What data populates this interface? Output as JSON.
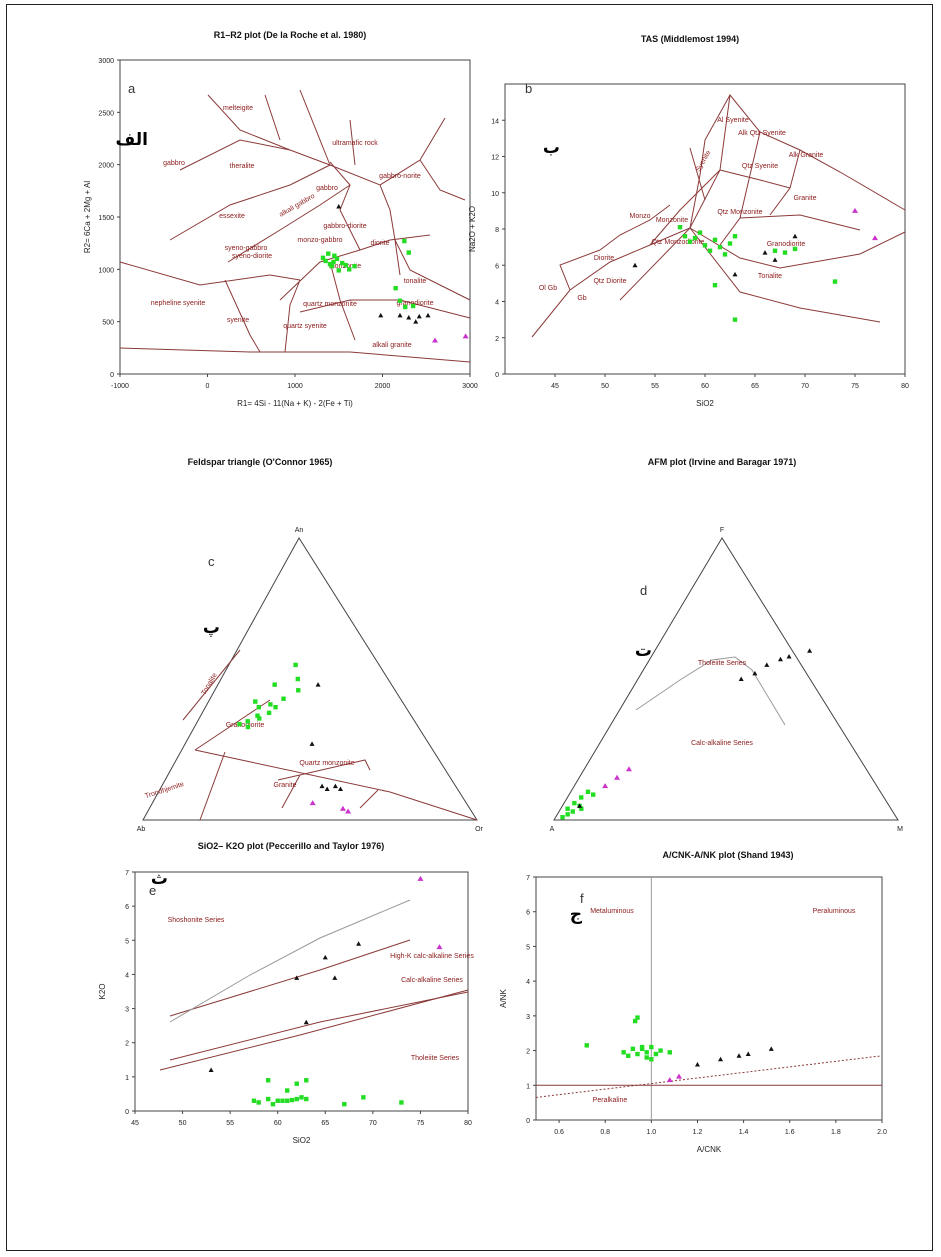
{
  "colors": {
    "field": "#8b1a1a",
    "boundary": "#8b3a3a",
    "green": "#22dd22",
    "black": "#111111",
    "magenta": "#cc33cc",
    "axis": "#444444"
  },
  "persian_labels": [
    "الف",
    "ب",
    "پ",
    "ت",
    "ث",
    "ج"
  ],
  "chart_data": [
    {
      "id": "a",
      "type": "scatter",
      "letter": "a",
      "title": "R1–R2 plot (De la Roche et al. 1980)",
      "xlabel": "R1= 4Si - 11(Na + K) - 2(Fe + Ti)",
      "ylabel": "R2= 6Ca + 2Mg + Al",
      "xlim": [
        -1000,
        3000
      ],
      "ylim": [
        0,
        3000
      ],
      "xticks": [
        "-1000",
        "0",
        "1000",
        "2000",
        "3000"
      ],
      "yticks": [
        "0",
        "500",
        "1000",
        "1500",
        "2000",
        "2500",
        "3000"
      ],
      "field_labels": [
        "melteigite",
        "ultramafic rock",
        "gabbro",
        "theralite",
        "gabbro-norite",
        "gabbro",
        "essexite",
        "alkali gabbro",
        "syeno-gabbro",
        "gabbro-diorite",
        "syeno-diorite",
        "monzo-gabbro",
        "diorite",
        "monzonite",
        "tonalite",
        "nepheline syenite",
        "syenite",
        "quartz monzonite",
        "granodiorite",
        "quartz syenite",
        "alkali granite",
        "granite"
      ],
      "series": [
        {
          "name": "",
          "color": "green",
          "points": [
            [
              1320,
              1110
            ],
            [
              1350,
              1080
            ],
            [
              1380,
              1150
            ],
            [
              1400,
              1050
            ],
            [
              1420,
              1030
            ],
            [
              1440,
              1070
            ],
            [
              1480,
              1100
            ],
            [
              1500,
              990
            ],
            [
              1540,
              1060
            ],
            [
              1580,
              1040
            ],
            [
              1620,
              1000
            ],
            [
              1680,
              1030
            ],
            [
              2150,
              820
            ],
            [
              2200,
              700
            ],
            [
              2250,
              1270
            ],
            [
              2300,
              1160
            ],
            [
              2350,
              650
            ],
            [
              2260,
              640
            ],
            [
              1450,
              1130
            ]
          ]
        },
        {
          "name": "",
          "color": "black",
          "points": [
            [
              1500,
              1600
            ],
            [
              1980,
              560
            ],
            [
              2200,
              560
            ],
            [
              2300,
              540
            ],
            [
              2380,
              500
            ],
            [
              2420,
              550
            ],
            [
              2520,
              560
            ]
          ]
        },
        {
          "name": "",
          "color": "magenta",
          "points": [
            [
              2600,
              320
            ],
            [
              2950,
              360
            ]
          ]
        }
      ]
    },
    {
      "id": "b",
      "type": "scatter",
      "letter": "b",
      "title": "TAS (Middlemost 1994)",
      "xlabel": "SiO2",
      "ylabel": "Na2O + K2O",
      "xlim": [
        40,
        80
      ],
      "ylim": [
        0,
        16
      ],
      "xticks": [
        "45",
        "50",
        "55",
        "60",
        "65",
        "70",
        "75",
        "80"
      ],
      "yticks": [
        "0",
        "2",
        "4",
        "6",
        "8",
        "10",
        "12",
        "14"
      ],
      "field_labels": [
        "Al Syenite",
        "Alk Qtz Syenite",
        "Alk Granite",
        "Qtz Syenite",
        "Syenite",
        "Qtz Monzonite",
        "Monzonite",
        "Granite",
        "Granodiorite",
        "Qtz Monzodiorite",
        "Monzo",
        "Qtz Diorite",
        "Tonalite",
        "Diorite",
        "Gb",
        "Ol Gb"
      ],
      "series": [
        {
          "name": "",
          "color": "green",
          "points": [
            [
              57.5,
              8.1
            ],
            [
              58,
              7.6
            ],
            [
              58.5,
              7.3
            ],
            [
              59,
              7.5
            ],
            [
              59.5,
              7.8
            ],
            [
              60,
              7.1
            ],
            [
              60.5,
              6.8
            ],
            [
              61,
              7.4
            ],
            [
              61.5,
              7.0
            ],
            [
              62,
              6.6
            ],
            [
              62.5,
              7.2
            ],
            [
              63,
              7.6
            ],
            [
              61,
              4.9
            ],
            [
              63,
              3.0
            ],
            [
              67,
              6.8
            ],
            [
              68,
              6.7
            ],
            [
              69,
              6.9
            ],
            [
              73,
              5.1
            ]
          ]
        },
        {
          "name": "",
          "color": "black",
          "points": [
            [
              53,
              6.0
            ],
            [
              63,
              5.5
            ],
            [
              66,
              6.7
            ],
            [
              67,
              6.3
            ],
            [
              69,
              7.6
            ]
          ]
        },
        {
          "name": "",
          "color": "magenta",
          "points": [
            [
              75,
              9.0
            ],
            [
              77,
              7.5
            ]
          ]
        }
      ]
    },
    {
      "id": "c",
      "type": "scatter",
      "letter": "c",
      "title": "Feldspar triangle (O'Connor 1965)",
      "corners": [
        "An",
        "Ab",
        "Or"
      ],
      "field_labels": [
        "Tonalite",
        "Granodiorite",
        "Quartz monzonite",
        "Trondhjemite",
        "Granite"
      ],
      "series": [
        {
          "name": "",
          "color": "green",
          "points": [
            [
              0.15,
              0.35
            ],
            [
              0.14,
              0.42
            ],
            [
              0.16,
              0.4
            ],
            [
              0.2,
              0.38
            ],
            [
              0.17,
              0.37
            ],
            [
              0.19,
              0.41
            ],
            [
              0.22,
              0.43
            ],
            [
              0.13,
              0.34
            ],
            [
              0.16,
              0.33
            ],
            [
              0.18,
              0.36
            ],
            [
              0.21,
              0.4
            ],
            [
              0.25,
              0.46
            ],
            [
              0.23,
              0.5
            ],
            [
              0.2,
              0.55
            ],
            [
              0.17,
              0.48
            ]
          ]
        },
        {
          "name": "",
          "color": "black",
          "points": [
            [
              0.3,
              0.48
            ],
            [
              0.38,
              0.27
            ],
            [
              0.48,
              0.12
            ],
            [
              0.5,
              0.11
            ],
            [
              0.52,
              0.12
            ],
            [
              0.54,
              0.11
            ]
          ]
        },
        {
          "name": "",
          "color": "magenta",
          "points": [
            [
              0.58,
              0.04
            ],
            [
              0.6,
              0.03
            ],
            [
              0.48,
              0.06
            ]
          ]
        }
      ]
    },
    {
      "id": "d",
      "type": "scatter",
      "letter": "d",
      "title": "AFM plot (Irvine and Baragar 1971)",
      "corners": [
        "F",
        "A",
        "M"
      ],
      "field_labels": [
        "Tholeiite Series",
        "Calc-alkaline Series"
      ],
      "series": [
        {
          "name": "",
          "color": "green",
          "points": [
            [
              0.02,
              0.01
            ],
            [
              0.03,
              0.02
            ],
            [
              0.04,
              0.03
            ],
            [
              0.02,
              0.04
            ],
            [
              0.05,
              0.05
            ],
            [
              0.03,
              0.06
            ],
            [
              0.06,
              0.04
            ],
            [
              0.04,
              0.08
            ],
            [
              0.05,
              0.1
            ],
            [
              0.07,
              0.09
            ]
          ]
        },
        {
          "name": "",
          "color": "black",
          "points": [
            [
              0.3,
              0.5
            ],
            [
              0.33,
              0.52
            ],
            [
              0.35,
              0.55
            ],
            [
              0.38,
              0.57
            ],
            [
              0.4,
              0.58
            ],
            [
              0.45,
              0.6
            ],
            [
              0.05,
              0.05
            ]
          ]
        },
        {
          "name": "",
          "color": "magenta",
          "points": [
            [
              0.09,
              0.12
            ],
            [
              0.11,
              0.15
            ],
            [
              0.13,
              0.18
            ]
          ]
        }
      ]
    },
    {
      "id": "e",
      "type": "scatter",
      "letter": "e",
      "title": "SiO2– K2O plot (Peccerillo and Taylor 1976)",
      "xlabel": "SiO2",
      "ylabel": "K2O",
      "xlim": [
        45,
        80
      ],
      "ylim": [
        0,
        7
      ],
      "xticks": [
        "45",
        "50",
        "55",
        "60",
        "65",
        "70",
        "75",
        "80"
      ],
      "yticks": [
        "0",
        "1",
        "2",
        "3",
        "4",
        "5",
        "6",
        "7"
      ],
      "field_labels": [
        "Shoshonite Series",
        "High-K calc-alkaline Series",
        "Calc-alkaline Series",
        "Tholeiite Series"
      ],
      "series": [
        {
          "name": "",
          "color": "green",
          "points": [
            [
              57.5,
              0.3
            ],
            [
              58,
              0.25
            ],
            [
              59,
              0.35
            ],
            [
              59.5,
              0.2
            ],
            [
              60,
              0.3
            ],
            [
              60.5,
              0.3
            ],
            [
              61,
              0.3
            ],
            [
              61.5,
              0.32
            ],
            [
              62,
              0.35
            ],
            [
              62.5,
              0.4
            ],
            [
              63,
              0.35
            ],
            [
              59,
              0.9
            ],
            [
              62,
              0.8
            ],
            [
              63,
              0.9
            ],
            [
              61,
              0.6
            ],
            [
              67,
              0.2
            ],
            [
              69,
              0.4
            ],
            [
              73,
              0.25
            ]
          ]
        },
        {
          "name": "",
          "color": "black",
          "points": [
            [
              53,
              1.2
            ],
            [
              62,
              3.9
            ],
            [
              63,
              2.6
            ],
            [
              65,
              4.5
            ],
            [
              66,
              3.9
            ],
            [
              68.5,
              4.9
            ]
          ]
        },
        {
          "name": "",
          "color": "magenta",
          "points": [
            [
              75,
              6.8
            ],
            [
              77,
              4.8
            ]
          ]
        }
      ]
    },
    {
      "id": "f",
      "type": "scatter",
      "letter": "f",
      "title": "A/CNK-A/NK plot (Shand 1943)",
      "xlabel": "A/CNK",
      "ylabel": "A/NK",
      "xlim": [
        0.5,
        2.0
      ],
      "ylim": [
        0,
        7
      ],
      "xticks": [
        "0.6",
        "0.8",
        "1.0",
        "1.2",
        "1.4",
        "1.6",
        "1.8",
        "2.0"
      ],
      "yticks": [
        "0",
        "1",
        "2",
        "3",
        "4",
        "5",
        "6",
        "7"
      ],
      "field_labels": [
        "Metaluminous",
        "Peraluminous",
        "Peralkaline"
      ],
      "series": [
        {
          "name": "",
          "color": "green",
          "points": [
            [
              0.72,
              2.15
            ],
            [
              0.88,
              1.95
            ],
            [
              0.9,
              1.85
            ],
            [
              0.92,
              2.05
            ],
            [
              0.94,
              1.9
            ],
            [
              0.96,
              2.1
            ],
            [
              0.98,
              1.95
            ],
            [
              1.0,
              2.1
            ],
            [
              1.02,
              1.9
            ],
            [
              1.04,
              2.0
            ],
            [
              0.98,
              1.8
            ],
            [
              1.0,
              1.75
            ],
            [
              0.93,
              2.85
            ],
            [
              0.94,
              2.95
            ],
            [
              1.08,
              1.95
            ],
            [
              0.96,
              2.05
            ]
          ]
        },
        {
          "name": "",
          "color": "black",
          "points": [
            [
              1.2,
              1.6
            ],
            [
              1.3,
              1.75
            ],
            [
              1.38,
              1.85
            ],
            [
              1.42,
              1.9
            ],
            [
              1.52,
              2.05
            ]
          ]
        },
        {
          "name": "",
          "color": "magenta",
          "points": [
            [
              1.08,
              1.15
            ],
            [
              1.12,
              1.25
            ]
          ]
        }
      ]
    }
  ]
}
